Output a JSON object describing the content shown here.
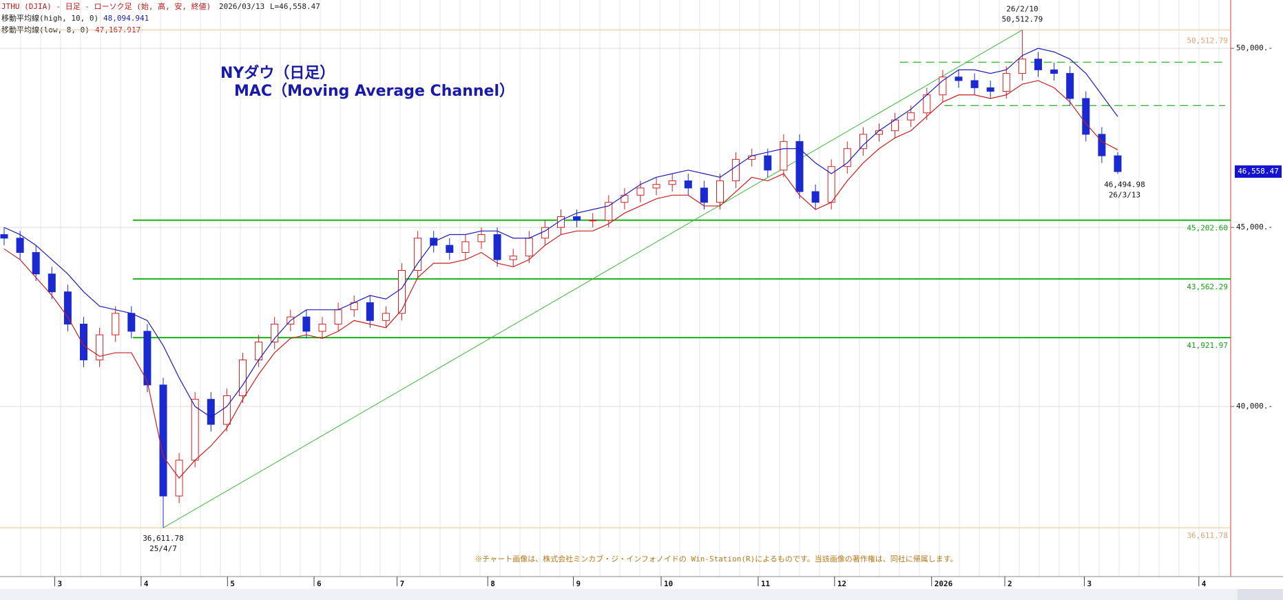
{
  "chart_data": {
    "type": "candlestick",
    "header": "JTHU (DJIA) - 日足 - ローソク足 (始, 高, 安, 終値)",
    "header_date": "2026/03/13",
    "header_last": "L=46,558.47",
    "title": "NYダウ（日足）",
    "subtitle": "MAC（Moving Average Channel）",
    "note": "※チャート画像は、株式会社ミンカブ・ジ・インフォノイドの Win-Station(R)によるものです。当該画像の著作権は、同社に帰属します。",
    "categories": [
      null,
      null,
      null,
      null,
      null,
      null,
      null,
      null,
      null,
      null,
      null,
      null,
      null,
      null,
      null,
      null,
      null,
      null,
      null,
      null,
      null,
      null,
      null,
      null,
      null,
      null,
      null,
      null,
      null,
      null,
      null,
      null,
      null,
      null,
      null,
      null,
      null,
      null,
      null,
      null,
      null,
      null,
      null,
      null,
      null,
      null,
      null,
      null,
      null,
      null,
      null,
      null,
      null,
      null,
      null,
      null,
      null,
      null,
      null,
      null,
      null,
      null,
      null,
      null,
      null,
      null,
      null,
      null,
      null,
      null,
      null
    ],
    "open": [
      44800,
      44700,
      44300,
      43700,
      43200,
      42300,
      41300,
      42000,
      42600,
      42100,
      40600,
      37500,
      38500,
      40200,
      39500,
      40300,
      41300,
      41800,
      42300,
      42500,
      42100,
      42300,
      42700,
      42900,
      42400,
      42600,
      43800,
      44700,
      44500,
      44300,
      44600,
      44800,
      44100,
      44200,
      44700,
      45000,
      45300,
      45200,
      45200,
      45700,
      45900,
      46100,
      46200,
      46300,
      46100,
      45700,
      46300,
      46900,
      47000,
      46600,
      47400,
      46000,
      45700,
      46700,
      47200,
      47600,
      47700,
      48000,
      48200,
      48700,
      49200,
      49100,
      48900,
      48800,
      49300,
      49700,
      49400,
      49300,
      48600,
      47600,
      47000
    ],
    "high": [
      45000,
      44900,
      44500,
      43900,
      43400,
      42500,
      42200,
      42800,
      42800,
      42300,
      40800,
      38700,
      40400,
      40400,
      40500,
      41500,
      42000,
      42500,
      42700,
      42700,
      42500,
      42900,
      43100,
      43100,
      42800,
      44000,
      44900,
      44900,
      44700,
      44800,
      45000,
      45000,
      44400,
      44900,
      45200,
      45500,
      45500,
      45400,
      45900,
      46100,
      46300,
      46400,
      46500,
      46500,
      46300,
      46500,
      47100,
      47200,
      47200,
      47600,
      47600,
      46200,
      46900,
      47400,
      47800,
      47900,
      48200,
      48400,
      48900,
      49400,
      49400,
      49300,
      49100,
      49500,
      50512.79,
      49900,
      49600,
      49500,
      48800,
      47800,
      47100
    ],
    "low": [
      44500,
      44100,
      43500,
      43000,
      42100,
      41100,
      41100,
      41800,
      41900,
      40400,
      36611.78,
      37300,
      38300,
      39300,
      39300,
      40100,
      41100,
      41600,
      42100,
      41900,
      41900,
      42100,
      42500,
      42200,
      42200,
      42400,
      43600,
      44300,
      44100,
      44100,
      44400,
      43900,
      43900,
      44000,
      44500,
      44800,
      45000,
      45000,
      45000,
      45500,
      45700,
      45900,
      46000,
      45900,
      45500,
      45500,
      46100,
      46700,
      46400,
      46400,
      45800,
      45500,
      45500,
      46500,
      47000,
      47400,
      47500,
      47800,
      48000,
      48500,
      48900,
      48700,
      48600,
      48600,
      49100,
      49200,
      49100,
      48400,
      47400,
      46800,
      46494.98
    ],
    "close": [
      44700,
      44300,
      43700,
      43200,
      42300,
      41300,
      42000,
      42600,
      42100,
      40600,
      37500,
      38500,
      40200,
      39500,
      40300,
      41300,
      41800,
      42300,
      42500,
      42100,
      42300,
      42700,
      42900,
      42400,
      42600,
      43800,
      44700,
      44500,
      44300,
      44600,
      44800,
      44100,
      44200,
      44700,
      45000,
      45300,
      45200,
      45200,
      45700,
      45900,
      46100,
      46200,
      46300,
      46100,
      45700,
      46300,
      46900,
      47000,
      46600,
      47400,
      46000,
      45700,
      46700,
      47200,
      47600,
      47700,
      48000,
      48200,
      48700,
      49200,
      49100,
      48900,
      48800,
      49300,
      49700,
      49400,
      49300,
      48600,
      47600,
      47000,
      46558.47
    ],
    "up_color": "#d42020",
    "down_color": "#1a2ad0",
    "series": [
      {
        "name": "移動平均線(high, 10, 0)",
        "color": "#1c1cb8",
        "last_label": "48,094.941",
        "values": [
          45000,
          44800,
          44500,
          44100,
          43700,
          43200,
          42800,
          42700,
          42600,
          42400,
          41700,
          40800,
          40000,
          39700,
          40000,
          40600,
          41300,
          41900,
          42400,
          42700,
          42700,
          42700,
          42900,
          43100,
          43000,
          43300,
          44000,
          44600,
          44800,
          44800,
          44900,
          44900,
          44700,
          44700,
          44900,
          45200,
          45400,
          45500,
          45600,
          45900,
          46200,
          46400,
          46500,
          46600,
          46500,
          46400,
          46700,
          47000,
          47100,
          47200,
          47200,
          46800,
          46500,
          46800,
          47300,
          47700,
          48000,
          48300,
          48700,
          49100,
          49400,
          49400,
          49300,
          49400,
          49800,
          50000,
          49900,
          49700,
          49300,
          48700,
          48094.941
        ]
      },
      {
        "name": "移動平均線(low, 8, 0)",
        "color": "#c81e1e",
        "last_label": "47,167.917",
        "values": [
          44400,
          44100,
          43600,
          43100,
          42500,
          41700,
          41400,
          41500,
          41500,
          40700,
          38600,
          38000,
          38500,
          38900,
          39400,
          40200,
          40900,
          41500,
          41900,
          42000,
          41900,
          42100,
          42400,
          42300,
          42200,
          42700,
          43600,
          44000,
          44000,
          44100,
          44300,
          44000,
          43900,
          44100,
          44500,
          44800,
          44900,
          44900,
          45100,
          45400,
          45600,
          45800,
          45900,
          45900,
          45600,
          45600,
          46000,
          46400,
          46300,
          46500,
          45900,
          45500,
          45700,
          46300,
          46800,
          47200,
          47500,
          47700,
          48100,
          48500,
          48700,
          48700,
          48600,
          48700,
          49000,
          49100,
          48900,
          48500,
          47900,
          47400,
          47167.917
        ]
      }
    ],
    "levels": [
      {
        "value": 50512.79,
        "label": "50,512.79",
        "color": "#f0c496"
      },
      {
        "value": 45202.6,
        "label": "45,202.60",
        "color": "#18b018"
      },
      {
        "value": 43562.29,
        "label": "43,562.29",
        "color": "#18b018"
      },
      {
        "value": 41921.97,
        "label": "41,921.97",
        "color": "#18b018"
      },
      {
        "value": 36611.78,
        "label": "36,611.78",
        "color": "#f0c496"
      }
    ],
    "channels": [
      {
        "value": 49612,
        "start": 56.3,
        "color": "#4ab84a"
      },
      {
        "value": 48402,
        "start": 59.1,
        "color": "#4ab84a"
      }
    ],
    "trendline": {
      "color": "#3cb83c"
    },
    "annotations": {
      "high": [
        "26/2/10",
        "50,512.79"
      ],
      "low": [
        "36,611.78",
        "25/4/7"
      ],
      "last": [
        "46,494.98",
        "26/3/13"
      ]
    },
    "last_price": 46558.47,
    "last_price_label": "46,558.47",
    "ylim": [
      35250,
      51350
    ],
    "yticks": [
      {
        "value": 40000,
        "label": "40,000.-"
      },
      {
        "value": 45000,
        "label": "45,000.-"
      },
      {
        "value": 50000,
        "label": "50,000.-"
      }
    ],
    "xticks": [
      {
        "value": 3.18,
        "label": "3"
      },
      {
        "value": 8.61,
        "label": "4"
      },
      {
        "value": 14.04,
        "label": "5"
      },
      {
        "value": 19.48,
        "label": "6"
      },
      {
        "value": 24.7,
        "label": "7"
      },
      {
        "value": 30.4,
        "label": "8"
      },
      {
        "value": 35.78,
        "label": "9"
      },
      {
        "value": 41.3,
        "label": "10"
      },
      {
        "value": 47.4,
        "label": "11"
      },
      {
        "value": 52.2,
        "label": "12"
      },
      {
        "value": 58.3,
        "label": "2026"
      },
      {
        "value": 62.9,
        "label": "2"
      },
      {
        "value": 67.9,
        "label": "3"
      },
      {
        "value": 75.1,
        "label": "4"
      }
    ],
    "grid": true
  }
}
